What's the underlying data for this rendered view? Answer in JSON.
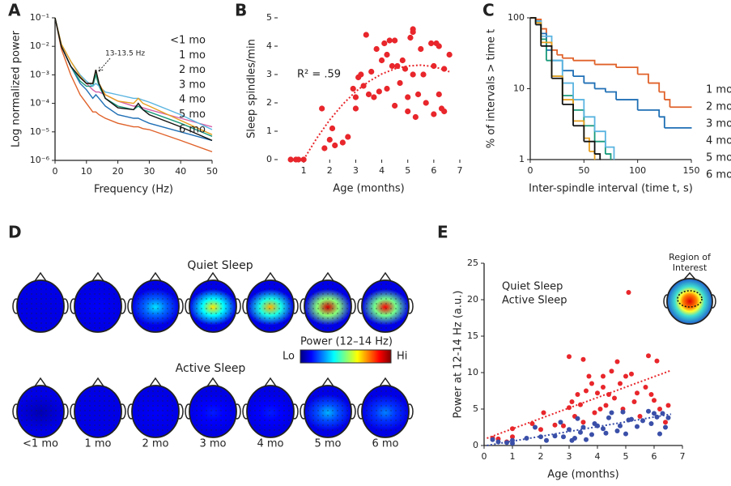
{
  "chart_data": [
    {
      "panel": "A",
      "type": "line",
      "xlabel": "Frequency (Hz)",
      "ylabel": "Log normalized power",
      "annotation": "13-13.5 Hz",
      "log_y": true,
      "legend": "upper right",
      "xlim": [
        0,
        50
      ],
      "xticks": [
        0,
        10,
        20,
        30,
        40,
        50
      ],
      "ylim": [
        1e-06,
        0.1
      ],
      "yticks": [
        {
          "value": 1e-06,
          "label": "10⁻⁶"
        },
        {
          "value": 1e-05,
          "label": "10⁻⁵"
        },
        {
          "value": 0.0001,
          "label": "10⁻⁴"
        },
        {
          "value": 0.001,
          "label": "10⁻³"
        },
        {
          "value": 0.01,
          "label": "10⁻²"
        },
        {
          "value": 0.1,
          "label": "10⁻¹"
        }
      ],
      "x": [
        0,
        2,
        5,
        8,
        10,
        12,
        13,
        14,
        16,
        20,
        25,
        26.5,
        28,
        30,
        40,
        50
      ],
      "series": [
        {
          "name": "<1 mo",
          "color": "#d460a8",
          "values": [
            0.1,
            0.01,
            0.002,
            0.0008,
            0.0005,
            0.0003,
            0.00025,
            0.00025,
            0.0002,
            0.00012,
            8e-05,
            8e-05,
            7e-05,
            6e-05,
            3e-05,
            1.5e-05
          ]
        },
        {
          "name": "1 mo",
          "color": "#e0622a",
          "values": [
            0.1,
            0.008,
            0.001,
            0.0002,
            0.0001,
            5e-05,
            5e-05,
            4e-05,
            3e-05,
            2e-05,
            1.5e-05,
            1.5e-05,
            1.3e-05,
            1.2e-05,
            5e-06,
            2e-06
          ]
        },
        {
          "name": "2 mo",
          "color": "#1f6fb5",
          "values": [
            0.1,
            0.01,
            0.002,
            0.0005,
            0.0003,
            0.00015,
            0.0002,
            0.00015,
            8e-05,
            4e-05,
            3e-05,
            3e-05,
            2.5e-05,
            2e-05,
            1e-05,
            5e-06
          ]
        },
        {
          "name": "3 mo",
          "color": "#1a9a7a",
          "values": [
            0.1,
            0.01,
            0.002,
            0.0006,
            0.0004,
            0.0004,
            0.001,
            0.0004,
            0.00015,
            8e-05,
            6e-05,
            8e-05,
            6e-05,
            5e-05,
            2e-05,
            7e-06
          ]
        },
        {
          "name": "4 mo",
          "color": "#5ab4e0",
          "values": [
            0.1,
            0.012,
            0.003,
            0.001,
            0.0006,
            0.0004,
            0.0005,
            0.0004,
            0.00025,
            0.0002,
            0.00015,
            0.00015,
            0.00013,
            0.00011,
            4e-05,
            1.2e-05
          ]
        },
        {
          "name": "5 mo",
          "color": "#e8a020",
          "values": [
            0.1,
            0.012,
            0.003,
            0.0009,
            0.0005,
            0.0005,
            0.0015,
            0.0005,
            0.0002,
            0.00012,
            0.0001,
            0.00015,
            0.0001,
            8e-05,
            2.5e-05,
            8e-06
          ]
        },
        {
          "name": "6 mo",
          "color": "#111111",
          "values": [
            0.1,
            0.01,
            0.002,
            0.0008,
            0.0005,
            0.0005,
            0.0015,
            0.0005,
            0.00015,
            7e-05,
            6e-05,
            0.0001,
            6e-05,
            4e-05,
            1.5e-05,
            5e-06
          ]
        }
      ]
    },
    {
      "panel": "B",
      "type": "scatter",
      "xlabel": "Age (months)",
      "ylabel": "Sleep spindles/min",
      "annotation": "R² = .59",
      "color": "#e8262b",
      "xlim": [
        0,
        7
      ],
      "xticks": [
        1,
        2,
        3,
        4,
        5,
        6,
        7
      ],
      "ylim": [
        0,
        5
      ],
      "yticks": [
        0,
        1,
        2,
        3,
        4,
        5
      ],
      "x": [
        0.5,
        0.7,
        0.8,
        1,
        1.7,
        1.8,
        2,
        2.1,
        2.2,
        2.5,
        2.7,
        2.9,
        3,
        3,
        3.1,
        3.2,
        3.3,
        3.4,
        3.5,
        3.6,
        3.7,
        3.8,
        3.9,
        4,
        4.1,
        4.2,
        4.2,
        4.3,
        4.4,
        4.5,
        4.5,
        4.6,
        4.7,
        4.8,
        4.9,
        5,
        5,
        5.1,
        5.2,
        5.2,
        5.2,
        5.3,
        5.4,
        5.5,
        5.6,
        5.7,
        5.9,
        6,
        6,
        6.1,
        6.2,
        6.2,
        6.3,
        6.4,
        6.4,
        6.6
      ],
      "values": [
        0,
        0,
        0,
        0,
        1.8,
        0.4,
        0.7,
        1.1,
        0.5,
        0.6,
        0.8,
        2.5,
        1.8,
        2.2,
        2.9,
        3,
        2.6,
        4.4,
        2.3,
        3.1,
        2.2,
        3.9,
        2.4,
        3.5,
        4.1,
        3.7,
        2.5,
        4.2,
        3.3,
        1.9,
        4.2,
        3.3,
        2.7,
        3.5,
        3.2,
        2.2,
        1.7,
        4.3,
        4.5,
        4.6,
        3,
        1.5,
        2.3,
        3.9,
        3,
        2,
        4.1,
        3.3,
        1.6,
        4.1,
        2.3,
        4,
        1.8,
        1.7,
        3.2,
        3.7
      ],
      "fit": {
        "x": [
          1,
          1.5,
          2,
          2.5,
          3,
          3.5,
          4,
          4.5,
          5,
          5.5,
          6,
          6.6
        ],
        "values": [
          0,
          0.75,
          1.4,
          1.95,
          2.4,
          2.75,
          3.02,
          3.2,
          3.3,
          3.33,
          3.28,
          3.1
        ]
      }
    },
    {
      "panel": "C",
      "type": "step",
      "xlabel": "Inter-spindle interval (time t, s)",
      "ylabel": "% of intervals > time t",
      "log_y": true,
      "legend": "right",
      "xlim": [
        0,
        150
      ],
      "xticks": [
        0,
        50,
        100,
        150
      ],
      "ylim": [
        1,
        100
      ],
      "yticks": [
        1,
        10,
        100
      ],
      "series": [
        {
          "name": "1 mo",
          "color": "#e0622a",
          "x": [
            0,
            5,
            10,
            15,
            20,
            25,
            30,
            40,
            60,
            80,
            100,
            110,
            120,
            125,
            130,
            150
          ],
          "values": [
            100,
            95,
            70,
            45,
            35,
            30,
            27,
            25,
            22,
            20,
            16,
            12,
            9,
            7,
            5.5,
            5.5
          ]
        },
        {
          "name": "2 mo",
          "color": "#1f6fb5",
          "x": [
            0,
            5,
            10,
            15,
            20,
            30,
            40,
            50,
            60,
            70,
            80,
            100,
            120,
            125,
            150
          ],
          "values": [
            100,
            90,
            60,
            35,
            25,
            18,
            15,
            12,
            10,
            9,
            7,
            5,
            4,
            2.8,
            2.8
          ]
        },
        {
          "name": "3 mo",
          "color": "#1a9a7a",
          "x": [
            0,
            5,
            10,
            15,
            20,
            30,
            40,
            50,
            60,
            70,
            75
          ],
          "values": [
            100,
            85,
            50,
            25,
            15,
            8,
            5,
            3,
            1.8,
            1.2,
            1
          ]
        },
        {
          "name": "4 mo",
          "color": "#5ab4e0",
          "x": [
            0,
            5,
            10,
            20,
            30,
            40,
            50,
            60,
            70,
            78
          ],
          "values": [
            100,
            90,
            55,
            25,
            12,
            7,
            4,
            2.5,
            1.5,
            1
          ]
        },
        {
          "name": "5 mo",
          "color": "#e8a020",
          "x": [
            0,
            5,
            10,
            20,
            30,
            40,
            50,
            55,
            60
          ],
          "values": [
            100,
            85,
            45,
            15,
            7,
            3.5,
            2,
            1.3,
            1
          ]
        },
        {
          "name": "6 mo",
          "color": "#111111",
          "x": [
            0,
            5,
            10,
            20,
            30,
            40,
            50,
            60,
            65
          ],
          "values": [
            100,
            80,
            40,
            14,
            6,
            3,
            1.8,
            1.2,
            1
          ]
        }
      ]
    },
    {
      "panel": "D",
      "type": "topomap",
      "categories": [
        "<1 mo",
        "1 mo",
        "2 mo",
        "3 mo",
        "4 mo",
        "5 mo",
        "6 mo"
      ],
      "rows": [
        {
          "name": "Quiet Sleep",
          "values": [
            0.1,
            0.12,
            0.35,
            0.65,
            0.7,
            0.92,
            0.88
          ]
        },
        {
          "name": "Active Sleep",
          "values": [
            0.05,
            0.1,
            0.12,
            0.15,
            0.15,
            0.3,
            0.25
          ]
        }
      ],
      "colorbar": {
        "label": "Power (12–14 Hz)",
        "low": "Lo",
        "high": "Hi"
      }
    },
    {
      "panel": "E",
      "type": "scatter",
      "xlabel": "Age (months)",
      "ylabel": "Power at 12-14 Hz (a.u.)",
      "legend": "upper left",
      "inset_label": [
        "Region of",
        "Interest"
      ],
      "xlim": [
        0,
        7
      ],
      "xticks": [
        0,
        1,
        2,
        3,
        4,
        5,
        6,
        7
      ],
      "ylim": [
        0,
        25
      ],
      "yticks": [
        0,
        5,
        10,
        15,
        20,
        25
      ],
      "series": [
        {
          "name": "Quiet Sleep",
          "color": "#e8262b",
          "x": [
            0.3,
            0.5,
            0.8,
            1,
            1,
            1.7,
            2,
            2.1,
            2.5,
            2.8,
            3,
            3,
            3.1,
            3.2,
            3.3,
            3.4,
            3.5,
            3.5,
            3.6,
            3.7,
            3.8,
            3.9,
            4,
            4.1,
            4.2,
            4.2,
            4.3,
            4.4,
            4.5,
            4.6,
            4.7,
            4.8,
            4.9,
            5,
            5.1,
            5.2,
            5.3,
            5.4,
            5.5,
            5.7,
            5.8,
            5.9,
            6,
            6.1,
            6.2,
            6.4,
            6.5
          ],
          "values": [
            1,
            0.9,
            0.5,
            1.2,
            2.3,
            3,
            2.2,
            4.5,
            2.8,
            2.7,
            12.2,
            5.2,
            6,
            4,
            7,
            5.6,
            11.8,
            3.2,
            7.5,
            9.5,
            8.5,
            4.5,
            7.2,
            5,
            9.5,
            8,
            5.5,
            7,
            10.2,
            6.5,
            11.5,
            8.5,
            5,
            9.5,
            21,
            9.8,
            6,
            7.2,
            4,
            8,
            12.3,
            7,
            6.2,
            11.6,
            5,
            3.2,
            5.5
          ],
          "fit": {
            "x": [
              0.1,
              6.6
            ],
            "values": [
              1,
              10.3
            ]
          }
        },
        {
          "name": "Active Sleep",
          "color": "#3a4fa8",
          "x": [
            0.3,
            0.5,
            0.8,
            1,
            1,
            1.5,
            1.8,
            2,
            2.2,
            2.5,
            2.7,
            2.8,
            3,
            3.1,
            3.2,
            3.3,
            3.4,
            3.5,
            3.6,
            3.8,
            3.9,
            4,
            4.2,
            4.3,
            4.4,
            4.5,
            4.7,
            4.8,
            4.9,
            5,
            5.1,
            5.2,
            5.4,
            5.6,
            5.8,
            5.9,
            6,
            6.1,
            6.2,
            6.3,
            6.4,
            6.5
          ],
          "values": [
            0.8,
            0.5,
            0.4,
            0.3,
            0.7,
            1,
            2.5,
            1.2,
            0.7,
            1.3,
            3.2,
            1.2,
            2.2,
            0.7,
            1,
            3.7,
            1.8,
            2.5,
            0.8,
            1.5,
            3,
            2.7,
            2.3,
            1.7,
            3.8,
            4.5,
            2,
            2.7,
            4.6,
            1.6,
            3.5,
            3.6,
            2.6,
            3.4,
            4.7,
            3,
            4.4,
            3.9,
            1.6,
            4.4,
            2.5,
            3.8
          ],
          "fit": {
            "x": [
              0.1,
              6.6
            ],
            "values": [
              0,
              4.3
            ]
          }
        }
      ]
    }
  ]
}
